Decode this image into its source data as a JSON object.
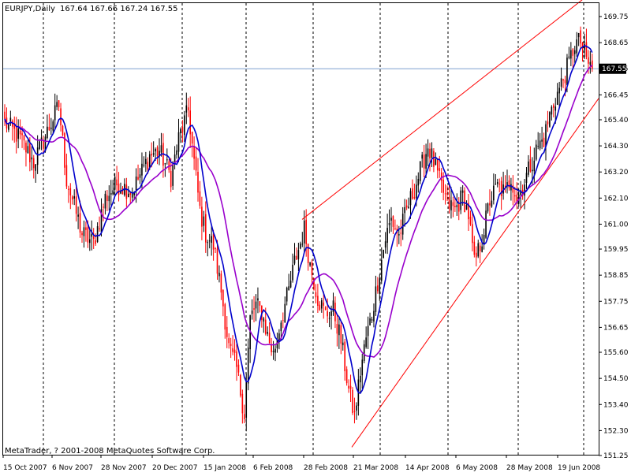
{
  "window": {
    "header_symbol": "EURJPY,Daily",
    "header_ohlc": "167.64 167.66 167.24 167.55",
    "copyright": "MetaTrader, ? 2001-2008 MetaQuotes Software Corp.",
    "current_price_label": "167.55"
  },
  "colors": {
    "background": "#ffffff",
    "candle_bull": "#000000",
    "candle_bear": "#ff0000",
    "ma_fast": "#0000cc",
    "ma_slow": "#9900cc",
    "trendlines": "#ff0000",
    "price_line": "#7f9fd0",
    "grid_vertical": "#000000"
  },
  "chart_data": {
    "type": "candlestick",
    "ylim": [
      151.25,
      170.97
    ],
    "y_ticks": [
      "169.75",
      "168.65",
      "167.55",
      "166.45",
      "165.40",
      "164.30",
      "163.20",
      "162.10",
      "161.00",
      "159.95",
      "158.85",
      "157.75",
      "156.65",
      "155.60",
      "154.50",
      "153.40",
      "152.30",
      "151.25"
    ],
    "x_ticks": [
      "15 Oct 2007",
      "6 Nov 2007",
      "28 Nov 2007",
      "20 Dec 2007",
      "15 Jan 2008",
      "6 Feb 2008",
      "28 Feb 2008",
      "21 Mar 2008",
      "14 Apr 2008",
      "6 May 2008",
      "28 May 2008",
      "19 Jun 2008"
    ],
    "current_price": 167.55,
    "grid": "vertical dashed at x ticks",
    "series": [
      {
        "name": "",
        "kind": "candles"
      },
      {
        "name": "",
        "kind": "moving-average-fast"
      },
      {
        "name": "",
        "kind": "moving-average-slow"
      }
    ],
    "trendlines": [
      {
        "from": [
          "28 Feb 2008",
          161.2
        ],
        "to": [
          "end",
          171.0
        ]
      },
      {
        "from": [
          "20 Mar 2008",
          151.6
        ],
        "to": [
          "end",
          166.3
        ]
      }
    ],
    "close_path": [
      [
        0,
        165.3
      ],
      [
        8,
        164.6
      ],
      [
        15,
        163.6
      ],
      [
        22,
        164.9
      ],
      [
        28,
        166.0
      ],
      [
        32,
        162.9
      ],
      [
        40,
        160.6
      ],
      [
        46,
        160.2
      ],
      [
        52,
        162.1
      ],
      [
        58,
        162.7
      ],
      [
        66,
        162.4
      ],
      [
        75,
        163.9
      ],
      [
        80,
        164.1
      ],
      [
        86,
        163.0
      ],
      [
        90,
        164.6
      ],
      [
        95,
        165.8
      ],
      [
        98,
        163.6
      ],
      [
        101,
        161.6
      ],
      [
        104,
        160.6
      ],
      [
        108,
        160.1
      ],
      [
        112,
        158.2
      ],
      [
        116,
        155.8
      ],
      [
        120,
        154.9
      ],
      [
        124,
        153.0
      ],
      [
        127,
        157.0
      ],
      [
        130,
        157.6
      ],
      [
        133,
        157.3
      ],
      [
        136,
        156.3
      ],
      [
        139,
        155.5
      ],
      [
        143,
        157.0
      ],
      [
        147,
        158.2
      ],
      [
        150,
        159.4
      ],
      [
        153,
        160.2
      ],
      [
        155,
        160.8
      ],
      [
        158,
        159.3
      ],
      [
        162,
        157.9
      ],
      [
        166,
        157.2
      ],
      [
        170,
        157.4
      ],
      [
        174,
        156.1
      ],
      [
        178,
        154.0
      ],
      [
        181,
        152.9
      ],
      [
        184,
        154.8
      ],
      [
        187,
        156.2
      ],
      [
        190,
        157.2
      ],
      [
        193,
        158.6
      ],
      [
        197,
        160.4
      ],
      [
        200,
        161.2
      ],
      [
        204,
        160.5
      ],
      [
        208,
        161.6
      ],
      [
        212,
        162.5
      ],
      [
        216,
        163.5
      ],
      [
        219,
        164.3
      ],
      [
        222,
        163.6
      ],
      [
        225,
        162.8
      ],
      [
        229,
        161.9
      ],
      [
        233,
        161.6
      ],
      [
        237,
        162.2
      ],
      [
        240,
        161.4
      ],
      [
        243,
        159.3
      ],
      [
        247,
        160.4
      ],
      [
        251,
        162.0
      ],
      [
        255,
        162.6
      ],
      [
        259,
        162.3
      ],
      [
        262,
        163.0
      ],
      [
        265,
        162.1
      ],
      [
        268,
        162.6
      ],
      [
        272,
        163.5
      ],
      [
        276,
        164.3
      ],
      [
        279,
        164.6
      ],
      [
        282,
        165.6
      ],
      [
        285,
        166.3
      ],
      [
        288,
        166.9
      ],
      [
        292,
        167.8
      ],
      [
        295,
        168.6
      ],
      [
        298,
        168.7
      ],
      [
        301,
        167.9
      ],
      [
        304,
        167.55
      ]
    ]
  }
}
